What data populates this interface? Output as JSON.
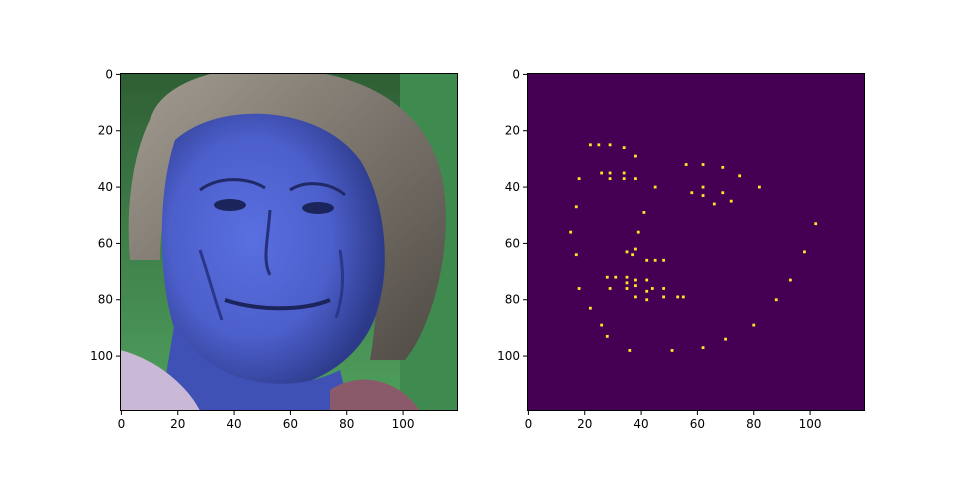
{
  "figure": {
    "background": "#ffffff",
    "panels": [
      {
        "kind": "image",
        "description_icon": "face-photo-icon",
        "image_size": [
          120,
          120
        ],
        "xticks": [
          "0",
          "20",
          "40",
          "60",
          "80",
          "100"
        ],
        "yticks": [
          "0",
          "20",
          "40",
          "60",
          "80",
          "100"
        ],
        "xtick_values": [
          0,
          20,
          40,
          60,
          80,
          100
        ],
        "ytick_values": [
          0,
          20,
          40,
          60,
          80,
          100
        ],
        "colors": {
          "skin": "#4c5fcb",
          "skin_dark": "#2d3a8a",
          "hair": "#7d766d",
          "background_green": "#3f8a4e",
          "clothing": "#c9b9d6"
        }
      },
      {
        "kind": "keypoint-map",
        "image_size": [
          120,
          120
        ],
        "xticks": [
          "0",
          "20",
          "40",
          "60",
          "80",
          "100"
        ],
        "yticks": [
          "0",
          "20",
          "40",
          "60",
          "80",
          "100"
        ],
        "xtick_values": [
          0,
          20,
          40,
          60,
          80,
          100
        ],
        "ytick_values": [
          0,
          20,
          40,
          60,
          80,
          100
        ],
        "colors": {
          "background": "#440154",
          "point": "#fde725"
        },
        "points": [
          [
            22,
            25
          ],
          [
            25,
            25
          ],
          [
            29,
            25
          ],
          [
            34,
            26
          ],
          [
            38,
            29
          ],
          [
            18,
            37
          ],
          [
            26,
            35
          ],
          [
            29,
            35
          ],
          [
            29,
            37
          ],
          [
            34,
            35
          ],
          [
            34,
            37
          ],
          [
            38,
            37
          ],
          [
            45,
            40
          ],
          [
            56,
            32
          ],
          [
            62,
            32
          ],
          [
            69,
            33
          ],
          [
            75,
            36
          ],
          [
            82,
            40
          ],
          [
            58,
            42
          ],
          [
            62,
            40
          ],
          [
            62,
            43
          ],
          [
            66,
            46
          ],
          [
            69,
            42
          ],
          [
            72,
            45
          ],
          [
            41,
            49
          ],
          [
            17,
            47
          ],
          [
            15,
            56
          ],
          [
            39,
            56
          ],
          [
            17,
            64
          ],
          [
            35,
            63
          ],
          [
            37,
            64
          ],
          [
            38,
            62
          ],
          [
            42,
            66
          ],
          [
            45,
            66
          ],
          [
            48,
            66
          ],
          [
            28,
            72
          ],
          [
            31,
            72
          ],
          [
            35,
            72
          ],
          [
            35,
            74
          ],
          [
            35,
            76
          ],
          [
            38,
            73
          ],
          [
            38,
            75
          ],
          [
            42,
            73
          ],
          [
            42,
            77
          ],
          [
            44,
            76
          ],
          [
            48,
            76
          ],
          [
            18,
            76
          ],
          [
            29,
            76
          ],
          [
            38,
            79
          ],
          [
            42,
            80
          ],
          [
            48,
            79
          ],
          [
            53,
            79
          ],
          [
            55,
            79
          ],
          [
            22,
            83
          ],
          [
            26,
            89
          ],
          [
            28,
            93
          ],
          [
            36,
            98
          ],
          [
            51,
            98
          ],
          [
            62,
            97
          ],
          [
            70,
            94
          ],
          [
            80,
            89
          ],
          [
            88,
            80
          ],
          [
            93,
            73
          ],
          [
            98,
            63
          ],
          [
            102,
            53
          ]
        ]
      }
    ]
  }
}
